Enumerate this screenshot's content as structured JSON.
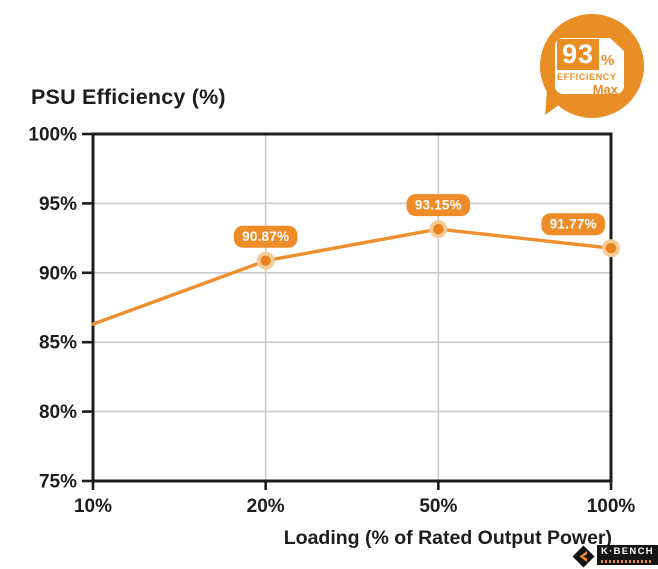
{
  "badge": {
    "value": "93",
    "percent_sign": "%",
    "caption": "EFFICIENCY",
    "subcaption": "Max"
  },
  "logo": {
    "brand": "K·BENCH"
  },
  "colors": {
    "orange": "#E88E24",
    "line": "#EE8F2E",
    "pill": "#ED8C28",
    "pill_text": "#FFFFFF",
    "marker": "#E8821E",
    "marker_ring": "#F5CB97",
    "grid": "#CBCBCB",
    "axis": "#1D1D1B"
  },
  "chart_data": {
    "type": "line",
    "title": "PSU Efficiency (%)",
    "xlabel": "Loading (% of Rated Output Power)",
    "ylabel": "",
    "categories": [
      "10%",
      "20%",
      "50%",
      "100%"
    ],
    "series": [
      {
        "name": "PSU Efficiency",
        "values": [
          86.3,
          90.87,
          93.15,
          91.77
        ]
      }
    ],
    "data_labels": [
      null,
      "90.87%",
      "93.15%",
      "91.77%"
    ],
    "ylim": [
      75,
      100
    ],
    "ytick_labels": [
      "100%",
      "95%",
      "90%",
      "85%",
      "80%",
      "75%"
    ],
    "grid": true,
    "legend": false
  }
}
